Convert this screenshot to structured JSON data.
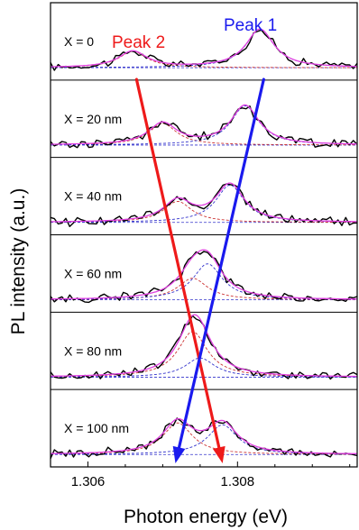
{
  "chart_data": {
    "type": "line",
    "xlabel": "Photon energy (eV)",
    "ylabel": "PL intensity (a.u.)",
    "xlim": [
      1.3055,
      1.3096
    ],
    "x_ticks": [
      {
        "value": 1.306,
        "label": "1.306"
      },
      {
        "value": 1.308,
        "label": "1.308"
      }
    ],
    "colors": {
      "data": "#000000",
      "fit": "#e040e0",
      "peak1_component": "#3333cc",
      "peak2_component": "#cc3333",
      "peak1_arrow": "#1a1aee",
      "peak2_arrow": "#ee1a1a",
      "baseline": "#3333cc"
    },
    "peak_labels": [
      {
        "name": "Peak 2",
        "color": "#ee1a1a"
      },
      {
        "name": "Peak 1",
        "color": "#1a1aee"
      }
    ],
    "panels": [
      {
        "label": "X = 0",
        "peak1": {
          "center": 1.3083,
          "amp": 0.8,
          "width": 0.00023
        },
        "peak2": {
          "center": 1.3066,
          "amp": 0.34,
          "width": 0.00023
        }
      },
      {
        "label": "X = 20 nm",
        "peak1": {
          "center": 1.3081,
          "amp": 0.82,
          "width": 0.00023
        },
        "peak2": {
          "center": 1.307,
          "amp": 0.45,
          "width": 0.00023
        }
      },
      {
        "label": "X = 40 nm",
        "peak1": {
          "center": 1.3079,
          "amp": 0.78,
          "width": 0.00023
        },
        "peak2": {
          "center": 1.3072,
          "amp": 0.44,
          "width": 0.00023
        }
      },
      {
        "label": "X = 60 nm",
        "peak1": {
          "center": 1.3076,
          "amp": 0.75,
          "width": 0.00024
        },
        "peak2": {
          "center": 1.3074,
          "amp": 0.45,
          "width": 0.00024
        }
      },
      {
        "label": "X = 80 nm",
        "peak1": {
          "center": 1.3075,
          "amp": 0.4,
          "width": 0.00024
        },
        "peak2": {
          "center": 1.3074,
          "amp": 0.95,
          "width": 0.00024
        }
      },
      {
        "label": "X = 100 nm",
        "peak1": {
          "center": 1.3078,
          "amp": 0.62,
          "width": 0.00024
        },
        "peak2": {
          "center": 1.3072,
          "amp": 0.66,
          "width": 0.00024
        }
      }
    ],
    "arrows": [
      {
        "series": "Peak 2",
        "color": "#ee1a1a",
        "from": {
          "x": 1.30665
        },
        "to": {
          "x": 1.3078
        }
      },
      {
        "series": "Peak 1",
        "color": "#1a1aee",
        "from": {
          "x": 1.30835
        },
        "to": {
          "x": 1.30717
        }
      }
    ]
  }
}
